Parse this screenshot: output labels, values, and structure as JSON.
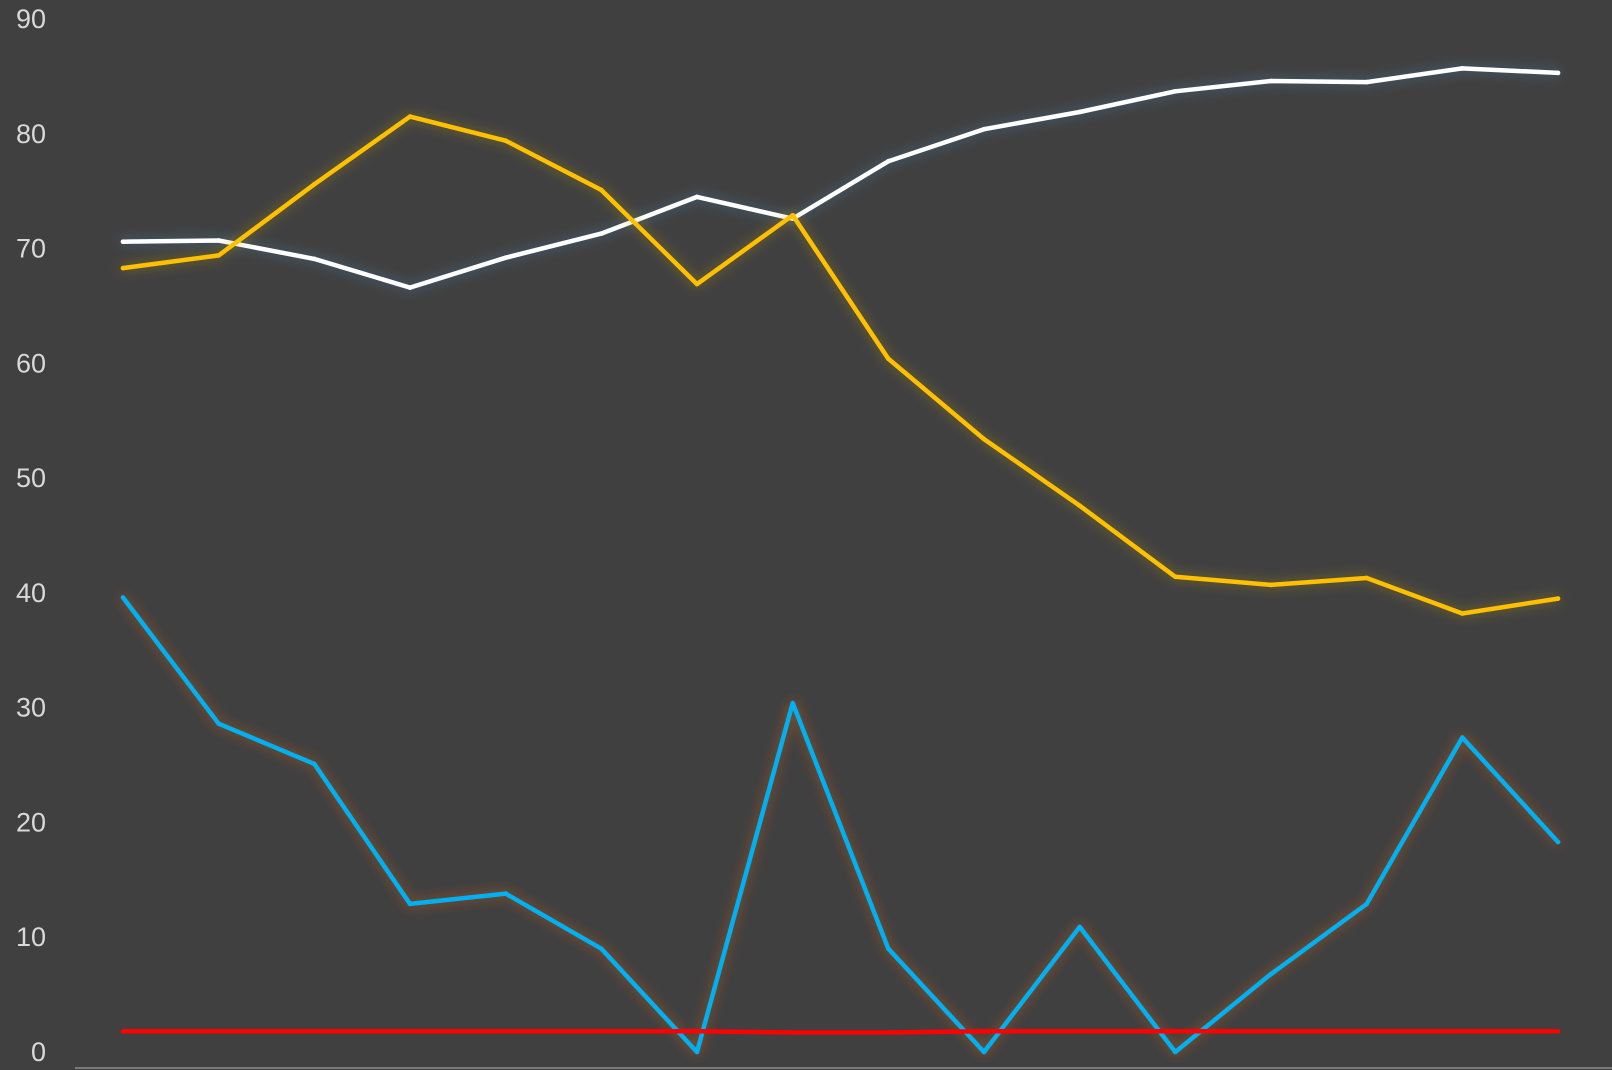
{
  "chart_data": {
    "type": "line",
    "ylim": [
      0,
      90
    ],
    "y_ticks": [
      0,
      10,
      20,
      30,
      40,
      50,
      60,
      70,
      80,
      90
    ],
    "grid": false,
    "x_axis_labels_visible": false,
    "point_count": 16,
    "series": [
      {
        "color": "#ffffff",
        "glow": "#4a90c8",
        "values": [
          70.6,
          70.7,
          69.1,
          66.6,
          69.2,
          71.3,
          74.5,
          72.6,
          77.6,
          80.4,
          81.9,
          83.7,
          84.6,
          84.5,
          85.7,
          85.3
        ]
      },
      {
        "color": "#ffc000",
        "glow": "#c8a000",
        "values": [
          68.3,
          69.4,
          75.6,
          81.5,
          79.4,
          75.1,
          66.9,
          72.9,
          60.4,
          53.4,
          47.6,
          41.4,
          40.7,
          41.3,
          38.2,
          39.5
        ]
      },
      {
        "color": "#00b0f0",
        "glow": "#ff6a1a",
        "values": [
          39.6,
          28.6,
          25.1,
          12.9,
          13.8,
          9.0,
          0.0,
          30.4,
          9.0,
          0.0,
          10.9,
          0.0,
          6.8,
          12.9,
          27.4,
          18.3
        ]
      },
      {
        "color": "#ff0000",
        "glow": "#ff0000",
        "values": [
          1.8,
          1.8,
          1.8,
          1.8,
          1.8,
          1.8,
          1.8,
          1.7,
          1.7,
          1.8,
          1.8,
          1.8,
          1.8,
          1.8,
          1.8,
          1.8
        ]
      }
    ]
  }
}
